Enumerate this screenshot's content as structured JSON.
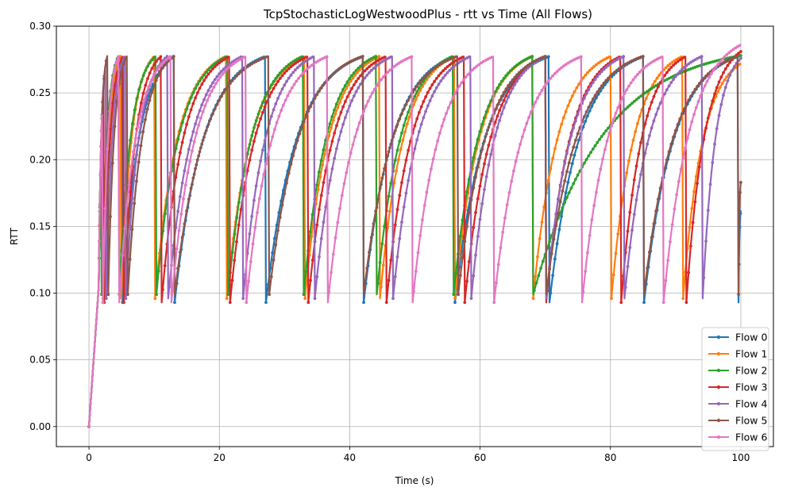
{
  "chart_data": {
    "type": "line",
    "title": "TcpStochasticLogWestwoodPlus - rtt vs Time (All Flows)",
    "xlabel": "Time (s)",
    "ylabel": "RTT",
    "xlim": [
      -5,
      105
    ],
    "ylim": [
      -0.015,
      0.3
    ],
    "xticks": [
      0,
      20,
      40,
      60,
      80,
      100
    ],
    "yticks": [
      0.0,
      0.05,
      0.1,
      0.15,
      0.2,
      0.25,
      0.3
    ],
    "xtick_labels": [
      "0",
      "20",
      "40",
      "60",
      "80",
      "100"
    ],
    "ytick_labels": [
      "0.00",
      "0.05",
      "0.10",
      "0.15",
      "0.20",
      "0.25",
      "0.30"
    ],
    "grid": true,
    "legend_position": "lower-right",
    "series_shape": {
      "initial_rtt": 0.0,
      "base_rtt": 0.093,
      "max_rtt": 0.285,
      "ramp_end_time": 1.5,
      "ramp_end_rtt": 0.105
    },
    "series": [
      {
        "name": "Flow 0",
        "color": "#1f77b4",
        "sawtooth_peaks_at": [
          2.0,
          5.0,
          13.0,
          27.0,
          42.0,
          56.0,
          70.5,
          85.0,
          99.5
        ],
        "end": [
          100.0,
          0.162
        ]
      },
      {
        "name": "Flow 1",
        "color": "#ff7f0e",
        "sawtooth_peaks_at": [
          2.0,
          4.8,
          10.0,
          21.0,
          33.0,
          44.5,
          56.0,
          68.0,
          80.0,
          91.0
        ],
        "end": [
          100.0,
          0.272
        ]
      },
      {
        "name": "Flow 2",
        "color": "#2ca02c",
        "sawtooth_peaks_at": [
          1.8,
          4.5,
          10.2,
          21.2,
          32.8,
          44.0,
          55.8,
          68.0
        ],
        "end": [
          100.0,
          0.278
        ]
      },
      {
        "name": "Flow 3",
        "color": "#d62728",
        "sawtooth_peaks_at": [
          2.2,
          5.2,
          11.0,
          21.5,
          33.5,
          45.5,
          57.5,
          70.0,
          81.5,
          91.5
        ],
        "end": [
          100.0,
          0.281
        ]
      },
      {
        "name": "Flow 4",
        "color": "#9467bd",
        "sawtooth_peaks_at": [
          2.5,
          5.5,
          12.0,
          23.5,
          34.5,
          46.5,
          58.5,
          70.0,
          82.0,
          94.0
        ],
        "end": [
          100.0,
          0.276
        ]
      },
      {
        "name": "Flow 5",
        "color": "#8c564b",
        "sawtooth_peaks_at": [
          2.8,
          5.8,
          13.0,
          27.5,
          42.0,
          56.5,
          70.0,
          85.0,
          99.5
        ],
        "end": [
          100.0,
          0.183
        ]
      },
      {
        "name": "Flow 6",
        "color": "#e377c2",
        "sawtooth_peaks_at": [
          2.0,
          4.5,
          12.5,
          24.0,
          36.5,
          49.5,
          62.0,
          75.5,
          88.0
        ],
        "end": [
          100.0,
          0.286
        ]
      }
    ]
  }
}
